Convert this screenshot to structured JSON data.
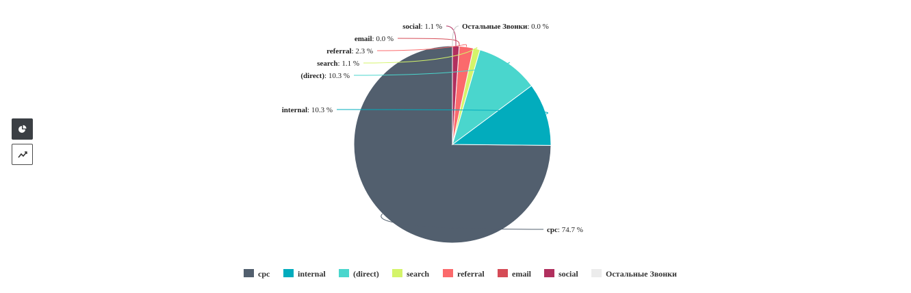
{
  "controls": {
    "pie_view": {
      "icon": "pie-chart-icon",
      "active": true
    },
    "line_view": {
      "icon": "line-chart-icon",
      "active": false
    }
  },
  "chart_data": {
    "type": "pie",
    "unit": "%",
    "slices": [
      {
        "name": "cpc",
        "value": 74.7,
        "color": "#525f6e"
      },
      {
        "name": "internal",
        "value": 10.3,
        "color": "#02acbd"
      },
      {
        "name": "(direct)",
        "value": 10.3,
        "color": "#4ad6cd"
      },
      {
        "name": "search",
        "value": 1.1,
        "color": "#d4f46a"
      },
      {
        "name": "referral",
        "value": 2.3,
        "color": "#fb6a6c"
      },
      {
        "name": "email",
        "value": 0.0,
        "color": "#d54b56"
      },
      {
        "name": "social",
        "value": 1.1,
        "color": "#b1305e"
      },
      {
        "name": "Остальные Звонки",
        "value": 0.0,
        "color": "#ececec"
      }
    ],
    "legend_position": "bottom"
  }
}
